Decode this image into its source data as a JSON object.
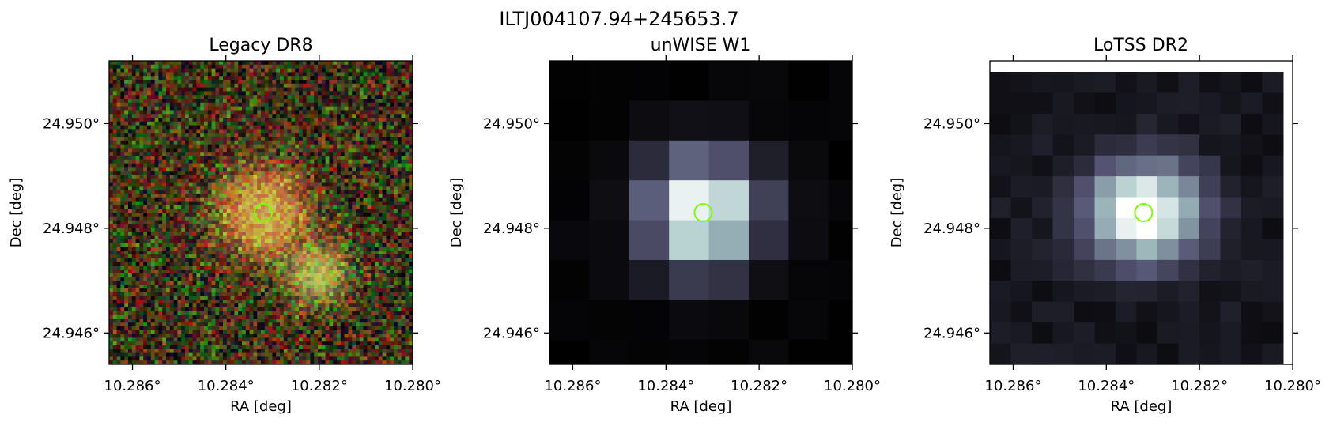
{
  "figure": {
    "suptitle": "ILTJ004107.94+245653.7",
    "marker_color": "#7cfc00"
  },
  "chart_data": [
    {
      "type": "heatmap",
      "title": "Legacy DR8",
      "xlabel": "RA [deg]",
      "ylabel": "Dec [deg]",
      "xlim": [
        10.2865,
        10.28
      ],
      "ylim": [
        24.9454,
        24.9512
      ],
      "xticks": [
        10.286,
        10.284,
        10.282,
        10.28
      ],
      "xtick_labels": [
        "10.286°",
        "10.284°",
        "10.282°",
        "10.280°"
      ],
      "yticks": [
        24.95,
        24.948,
        24.946
      ],
      "ytick_labels": [
        "24.950°",
        "24.948°",
        "24.946°"
      ],
      "colormap": "rgb composite",
      "marker": {
        "ra": 10.2832,
        "dec": 24.9483,
        "shape": "circle"
      },
      "sources": [
        {
          "ra": 10.2832,
          "dec": 24.9483,
          "color": "orange"
        },
        {
          "ra": 10.282,
          "dec": 24.9471,
          "color": "yellow-green"
        }
      ]
    },
    {
      "type": "heatmap",
      "title": "unWISE W1",
      "xlabel": "RA [deg]",
      "ylabel": "Dec [deg]",
      "xlim": [
        10.2865,
        10.28
      ],
      "ylim": [
        24.9454,
        24.9512
      ],
      "xticks": [
        10.286,
        10.284,
        10.282,
        10.28
      ],
      "xtick_labels": [
        "10.286°",
        "10.284°",
        "10.282°",
        "10.280°"
      ],
      "yticks": [
        24.95,
        24.948,
        24.946
      ],
      "ytick_labels": [
        "24.950°",
        "24.948°",
        "24.946°"
      ],
      "colormap": "bone",
      "marker": {
        "ra": 10.2832,
        "dec": 24.9483,
        "shape": "circle"
      },
      "peak": {
        "ra": 10.2832,
        "dec": 24.9483
      }
    },
    {
      "type": "heatmap",
      "title": "LoTSS DR2",
      "xlabel": "RA [deg]",
      "ylabel": "Dec [deg]",
      "xlim": [
        10.2865,
        10.28
      ],
      "ylim": [
        24.9454,
        24.9512
      ],
      "xticks": [
        10.286,
        10.284,
        10.282,
        10.28
      ],
      "xtick_labels": [
        "10.286°",
        "10.284°",
        "10.282°",
        "10.280°"
      ],
      "yticks": [
        24.95,
        24.948,
        24.946
      ],
      "ytick_labels": [
        "24.950°",
        "24.948°",
        "24.946°"
      ],
      "colormap": "bone",
      "marker": {
        "ra": 10.2832,
        "dec": 24.9483,
        "shape": "circle"
      },
      "peak": {
        "ra": 10.2832,
        "dec": 24.9483
      }
    }
  ]
}
